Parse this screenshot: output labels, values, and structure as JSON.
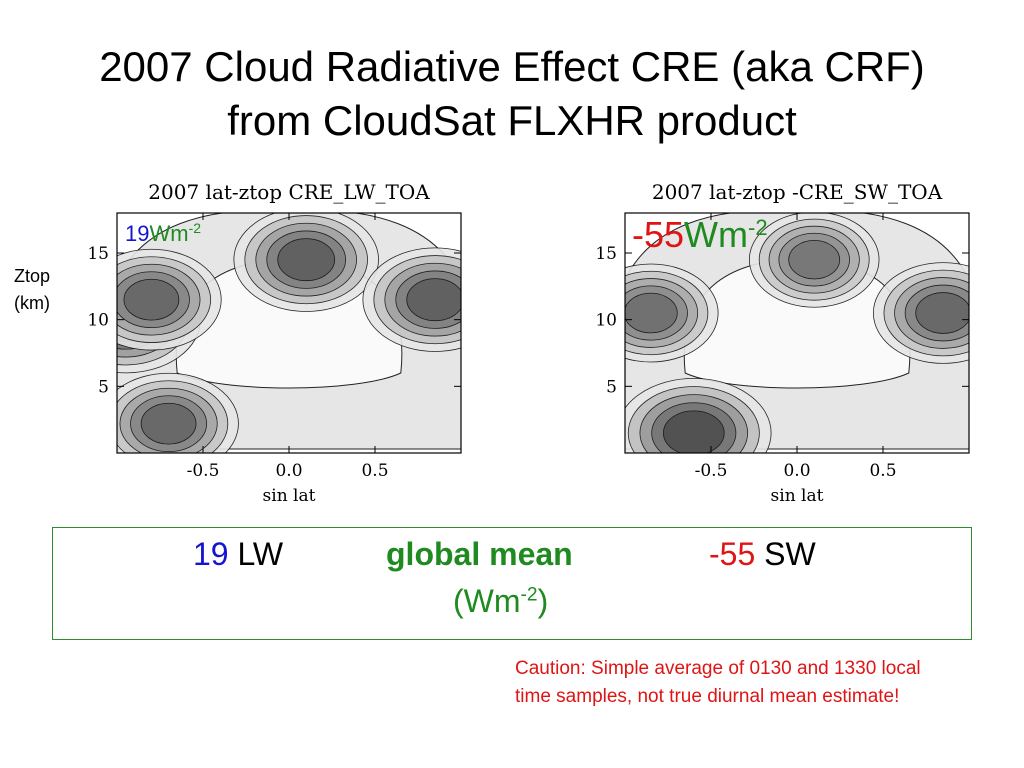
{
  "slide": {
    "title_line1": "2007 Cloud Radiative Effect CRE (aka CRF)",
    "title_line2": "from CloudSat FLXHR product",
    "y_label_line1": "Ztop",
    "y_label_line2": "(km)"
  },
  "chart_data": [
    {
      "type": "heatmap",
      "title": "2007 lat-ztop CRE_LW_TOA",
      "xlabel": "sin lat",
      "ylabel": "Ztop (km)",
      "x_ticks": [
        "-0.5",
        "0.0",
        "0.5"
      ],
      "y_ticks": [
        "5",
        "10",
        "15"
      ],
      "xlim": [
        -1,
        1
      ],
      "ylim": [
        0,
        18
      ],
      "annotation_value": "19",
      "annotation_unit": "Wm",
      "annotation_exp": "-2",
      "annotation_value_color": "#1414d4",
      "annotation_unit_color": "#1f8a1f",
      "hotspots": [
        {
          "x": -0.95,
          "y": 10,
          "level": 0.9
        },
        {
          "x": -0.8,
          "y": 11.5,
          "level": 0.8
        },
        {
          "x": 0.1,
          "y": 14.5,
          "level": 0.85
        },
        {
          "x": 0.85,
          "y": 11.5,
          "level": 0.85
        },
        {
          "x": -0.7,
          "y": 2.2,
          "level": 0.8
        }
      ]
    },
    {
      "type": "heatmap",
      "title": "2007 lat-ztop -CRE_SW_TOA",
      "xlabel": "sin lat",
      "ylabel": "Ztop (km)",
      "x_ticks": [
        "-0.5",
        "0.0",
        "0.5"
      ],
      "y_ticks": [
        "5",
        "10",
        "15"
      ],
      "xlim": [
        -1,
        1
      ],
      "ylim": [
        0,
        18
      ],
      "annotation_value": "-55",
      "annotation_unit": "Wm",
      "annotation_exp": "-2",
      "annotation_value_color": "#e01414",
      "annotation_unit_color": "#1f8a1f",
      "hotspots": [
        {
          "x": -0.85,
          "y": 10.5,
          "level": 0.75
        },
        {
          "x": 0.1,
          "y": 14.5,
          "level": 0.7
        },
        {
          "x": 0.85,
          "y": 10.5,
          "level": 0.8
        },
        {
          "x": -0.6,
          "y": 1.5,
          "level": 0.95
        }
      ]
    }
  ],
  "global_mean": {
    "lw_value": "19",
    "lw_label": "LW",
    "label": "global mean",
    "sw_value": "-55",
    "sw_label": "SW",
    "unit": "(Wm",
    "unit_exp": "-2",
    "unit_close": ")"
  },
  "caution": {
    "line1": "Caution: Simple average of 0130 and 1330 local",
    "line2": "time samples, not true diurnal mean estimate!"
  }
}
